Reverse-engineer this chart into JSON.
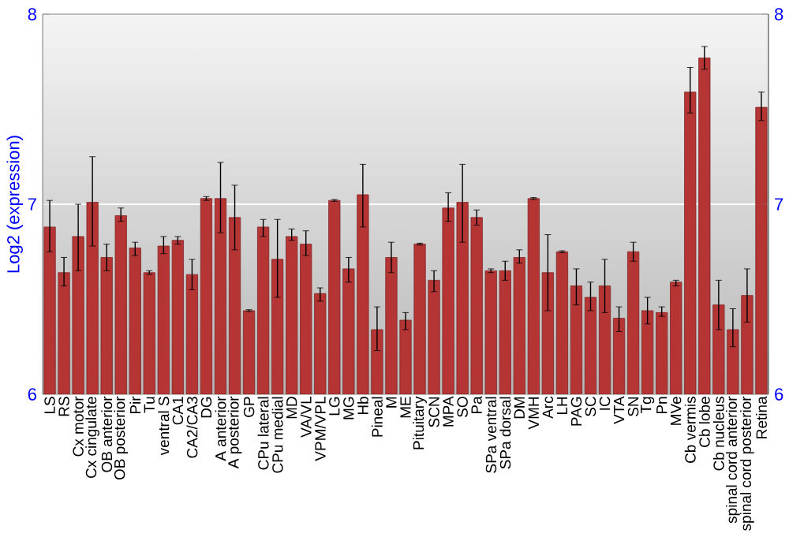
{
  "chart_data": {
    "type": "bar",
    "ylabel": "Log2 (expression)",
    "categories": [
      "LS",
      "RS",
      "Cx motor",
      "Cx cingulate",
      "OB anterior",
      "OB posterior",
      "Pir",
      "Tu",
      "ventral S",
      "CA1",
      "CA2/CA3",
      "DG",
      "A anterior",
      "A posterior",
      "GP",
      "CPu lateral",
      "CPu medial",
      "MD",
      "VA/VL",
      "VPM/VPL",
      "LG",
      "MG",
      "Hb",
      "Pineal",
      "M",
      "ME",
      "Pituitary",
      "SCN",
      "MPA",
      "SO",
      "Pa",
      "SPa ventral",
      "SPa dorsal",
      "DM",
      "VMH",
      "Arc",
      "LH",
      "PAG",
      "SC",
      "IC",
      "VTA",
      "SN",
      "Tg",
      "Pn",
      "MVe",
      "Cb vermis",
      "Cb lobe",
      "Cb nucleus",
      "spinal cord anterior",
      "spinal cord posterior",
      "Retina"
    ],
    "values": [
      6.88,
      6.64,
      6.83,
      7.01,
      6.72,
      6.94,
      6.77,
      6.64,
      6.78,
      6.81,
      6.63,
      7.03,
      7.03,
      6.93,
      6.44,
      6.88,
      6.71,
      6.83,
      6.79,
      6.53,
      7.02,
      6.66,
      7.05,
      6.34,
      6.72,
      6.39,
      6.79,
      6.6,
      6.98,
      7.01,
      6.93,
      6.65,
      6.65,
      6.72,
      7.03,
      6.64,
      6.75,
      6.57,
      6.51,
      6.57,
      6.4,
      6.75,
      6.44,
      6.43,
      6.59,
      7.59,
      7.77,
      6.47,
      6.34,
      6.52,
      7.51
    ],
    "errors": [
      [
        6.75,
        7.02
      ],
      [
        6.57,
        6.72
      ],
      [
        6.65,
        7.0
      ],
      [
        6.78,
        7.25
      ],
      [
        6.65,
        6.79
      ],
      [
        6.91,
        6.98
      ],
      [
        6.73,
        6.8
      ],
      [
        6.63,
        6.65
      ],
      [
        6.74,
        6.83
      ],
      [
        6.79,
        6.83
      ],
      [
        6.55,
        6.71
      ],
      [
        7.02,
        7.04
      ],
      [
        6.85,
        7.22
      ],
      [
        6.76,
        7.1
      ],
      0.005,
      [
        6.83,
        6.92
      ],
      [
        6.51,
        6.92
      ],
      [
        6.81,
        6.87
      ],
      [
        6.73,
        6.86
      ],
      [
        6.49,
        6.56
      ],
      0.005,
      [
        6.59,
        6.72
      ],
      [
        6.88,
        7.21
      ],
      [
        6.23,
        6.46
      ],
      [
        6.64,
        6.8
      ],
      [
        6.34,
        6.43
      ],
      0.005,
      [
        6.54,
        6.65
      ],
      [
        6.91,
        7.06
      ],
      [
        6.8,
        7.21
      ],
      [
        6.89,
        6.97
      ],
      [
        6.64,
        6.66
      ],
      [
        6.6,
        6.7
      ],
      [
        6.69,
        6.76
      ],
      0.005,
      [
        6.44,
        6.84
      ],
      0.005,
      [
        6.47,
        6.66
      ],
      [
        6.44,
        6.59
      ],
      [
        6.43,
        6.71
      ],
      [
        6.33,
        6.46
      ],
      [
        6.7,
        6.8
      ],
      [
        6.37,
        6.51
      ],
      [
        6.41,
        6.46
      ],
      [
        6.57,
        6.6
      ],
      [
        7.48,
        7.72
      ],
      [
        7.71,
        7.83
      ],
      [
        6.34,
        6.6
      ],
      [
        6.25,
        6.45
      ],
      [
        6.38,
        6.66
      ],
      [
        7.44,
        7.59
      ]
    ],
    "color": "#b53535",
    "ylim": [
      6,
      8
    ],
    "yticks": [
      6,
      7,
      8
    ],
    "y2lim": [
      6,
      8
    ],
    "y2ticks": [
      6,
      7,
      8
    ],
    "grid": "y"
  }
}
